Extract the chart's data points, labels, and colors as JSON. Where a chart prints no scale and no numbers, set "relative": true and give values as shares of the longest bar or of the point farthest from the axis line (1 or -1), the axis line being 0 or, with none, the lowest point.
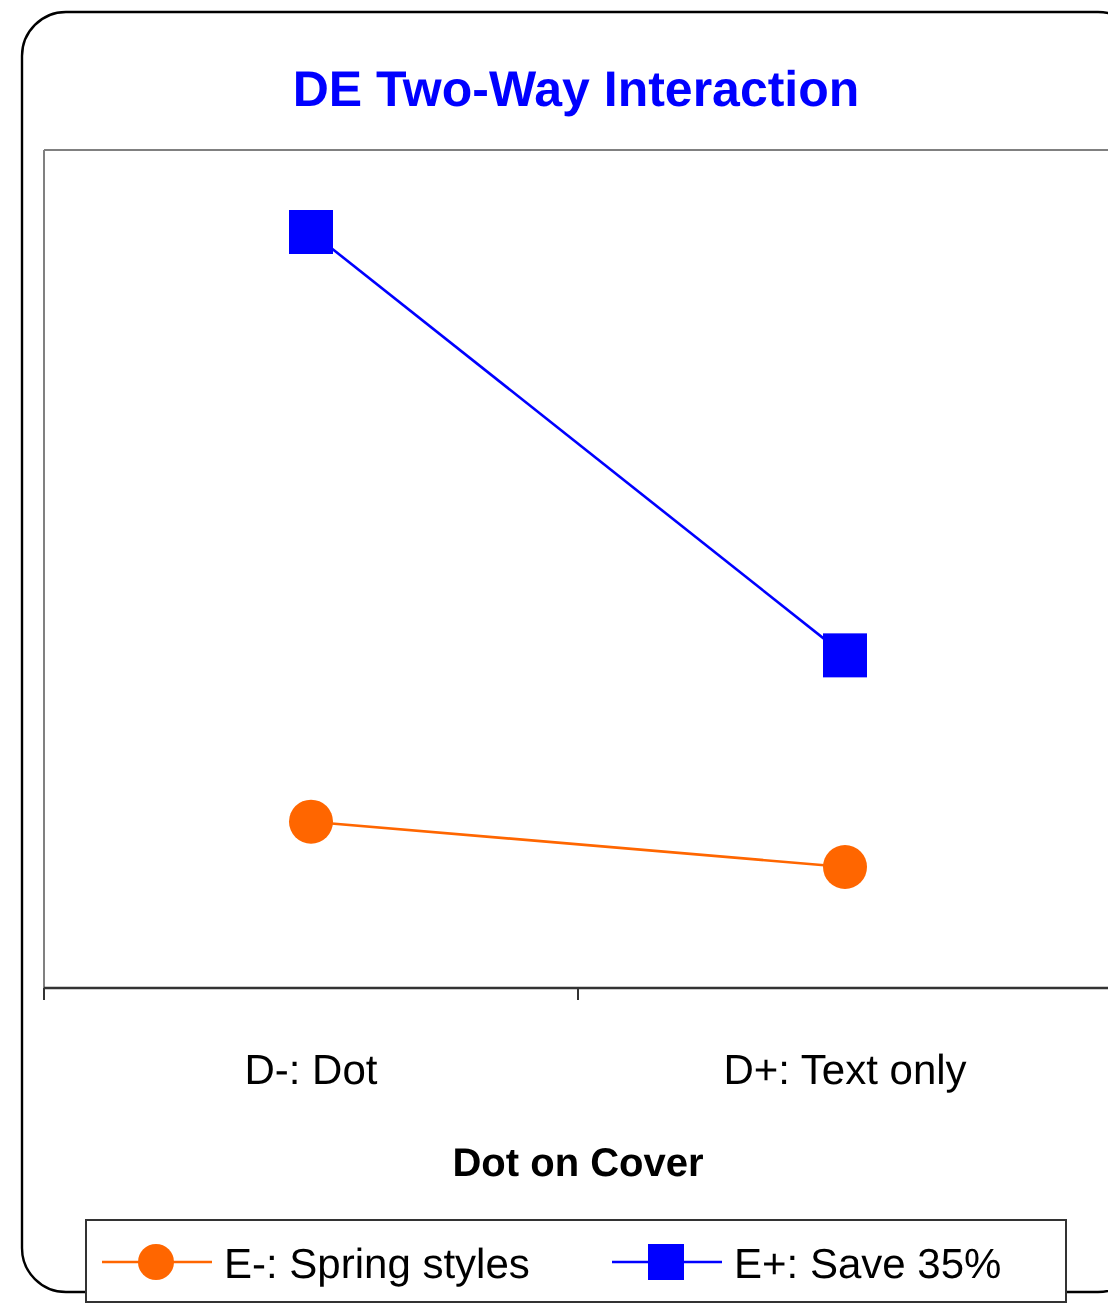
{
  "chart_data": {
    "type": "line",
    "title": "DE Two-Way Interaction",
    "xlabel": "Dot on Cover",
    "categories": [
      "D-: Dot",
      "D+: Text only"
    ],
    "relative": true,
    "legend": "bottom",
    "series": [
      {
        "name": "E-: Spring styles",
        "color": "#ff6600",
        "marker": "circle",
        "values": [
          0.22,
          0.16
        ]
      },
      {
        "name": "E+: Save 35%",
        "color": "#0000ff",
        "marker": "square",
        "values": [
          1,
          0.44
        ]
      }
    ]
  }
}
